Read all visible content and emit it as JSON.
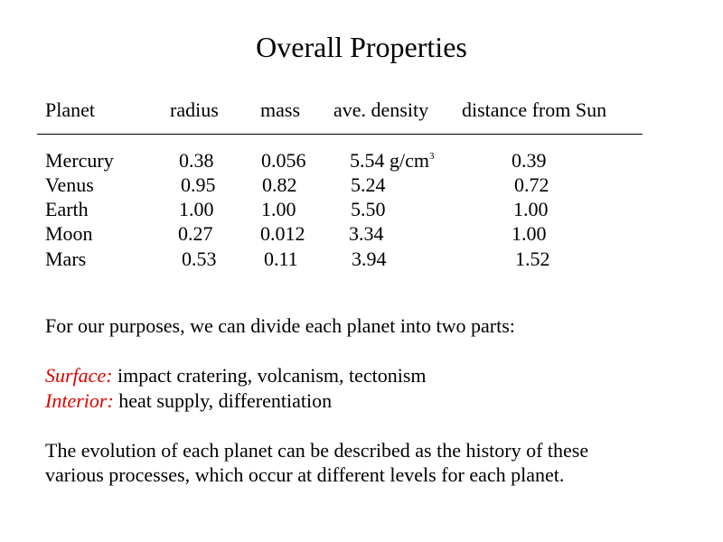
{
  "title": "Overall Properties",
  "table": {
    "headers": {
      "planet": "Planet",
      "radius": "radius",
      "mass": "mass",
      "density": "ave. density",
      "distance": "distance from Sun"
    },
    "rows": [
      {
        "planet": "Mercury",
        "radius": "0.38",
        "mass": "0.056",
        "density": "5.54 g/cm",
        "density_unit_sup": "3",
        "distance": "0.39"
      },
      {
        "planet": "Venus",
        "radius": "0.95",
        "mass": "0.82",
        "density": "5.24",
        "distance": "0.72"
      },
      {
        "planet": "Earth",
        "radius": "1.00",
        "mass": "1.00",
        "density": "5.50",
        "distance": "1.00"
      },
      {
        "planet": "Moon",
        "radius": "0.27",
        "mass": "0.012",
        "density": "3.34",
        "distance": "1.00"
      },
      {
        "planet": "Mars",
        "radius": "0.53",
        "mass": "0.11",
        "density": "3.94",
        "distance": "1.52"
      }
    ]
  },
  "intro": "For our purposes, we can divide each planet into two parts:",
  "parts": [
    {
      "label": "Surface:",
      "text": " impact cratering, volcanism, tectonism"
    },
    {
      "label": "Interior:",
      "text": " heat supply, differentiation"
    }
  ],
  "conclusion": {
    "line1": "The evolution of each planet can be described as the history of these",
    "line2": "various processes, which occur at different levels for each planet."
  },
  "colors": {
    "label_red": "#e00000",
    "text": "#000000",
    "background": "#ffffff"
  }
}
